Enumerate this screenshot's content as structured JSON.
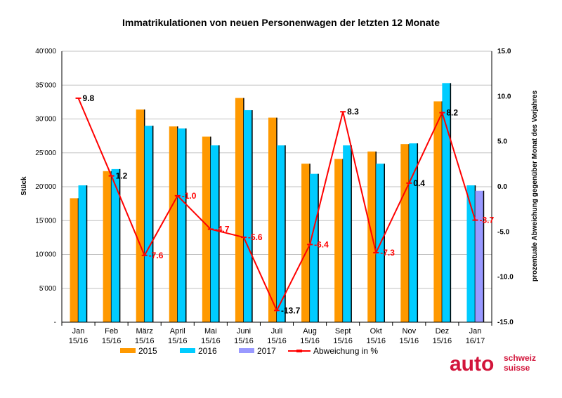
{
  "chart_data": {
    "type": "bar",
    "title": "Immatrikulationen von neuen Personenwagen der letzten 12 Monate",
    "ylabel": "Stück",
    "y2label": "prozentuale Abweichung gegenüber Monat des Vorjahres",
    "ylim": [
      0,
      40000
    ],
    "y2lim": [
      -15,
      15
    ],
    "yticks": [
      "-",
      "5'000",
      "10'000",
      "15'000",
      "20'000",
      "25'000",
      "30'000",
      "35'000",
      "40'000"
    ],
    "y2ticks": [
      "-15.0",
      "-10.0",
      "-5.0",
      "0.0",
      "5.0",
      "10.0",
      "15.0"
    ],
    "categories": [
      {
        "month": "Jan",
        "period": "15/16"
      },
      {
        "month": "Feb",
        "period": "15/16"
      },
      {
        "month": "März",
        "period": "15/16"
      },
      {
        "month": "April",
        "period": "15/16"
      },
      {
        "month": "Mai",
        "period": "15/16"
      },
      {
        "month": "Juni",
        "period": "15/16"
      },
      {
        "month": "Juli",
        "period": "15/16"
      },
      {
        "month": "Aug",
        "period": "15/16"
      },
      {
        "month": "Sept",
        "period": "15/16"
      },
      {
        "month": "Okt",
        "period": "15/16"
      },
      {
        "month": "Nov",
        "period": "15/16"
      },
      {
        "month": "Dez",
        "period": "15/16"
      },
      {
        "month": "Jan",
        "period": "16/17"
      }
    ],
    "series": [
      {
        "name": "2015",
        "color": "#ff9900",
        "values": [
          18300,
          22300,
          31400,
          28900,
          27400,
          33100,
          30200,
          23400,
          24100,
          25200,
          26300,
          32600,
          null
        ]
      },
      {
        "name": "2016",
        "color": "#00ccff",
        "values": [
          20200,
          22600,
          29000,
          28600,
          26100,
          31300,
          26100,
          21900,
          26100,
          23400,
          26400,
          35300,
          20200
        ]
      },
      {
        "name": "2017",
        "color": "#9999ff",
        "values": [
          null,
          null,
          null,
          null,
          null,
          null,
          null,
          null,
          null,
          null,
          null,
          null,
          19400
        ]
      }
    ],
    "line": {
      "name": "Abweichung in %",
      "color": "#ff0000",
      "axis": "right",
      "values": [
        9.8,
        1.2,
        -7.6,
        -1.0,
        -4.7,
        -5.6,
        -13.7,
        -6.4,
        8.3,
        -7.3,
        0.4,
        8.2,
        -3.7
      ],
      "labels": [
        "9.8",
        "1.2",
        "-7.6",
        "-1.0",
        "-4.7",
        "-5.6",
        "-13.7",
        "-6.4",
        "8.3",
        "-7.3",
        "0.4",
        "8.2",
        "-3.7"
      ],
      "label_colors": [
        "#000000",
        "#000000",
        "#ff0000",
        "#ff0000",
        "#ff0000",
        "#ff0000",
        "#000000",
        "#ff0000",
        "#000000",
        "#ff0000",
        "#000000",
        "#000000",
        "#ff0000"
      ]
    },
    "grid": true,
    "legend": "bottom"
  },
  "logo": {
    "word": "auto",
    "top": "schweiz",
    "bottom": "suisse",
    "color": "#d2143a"
  }
}
